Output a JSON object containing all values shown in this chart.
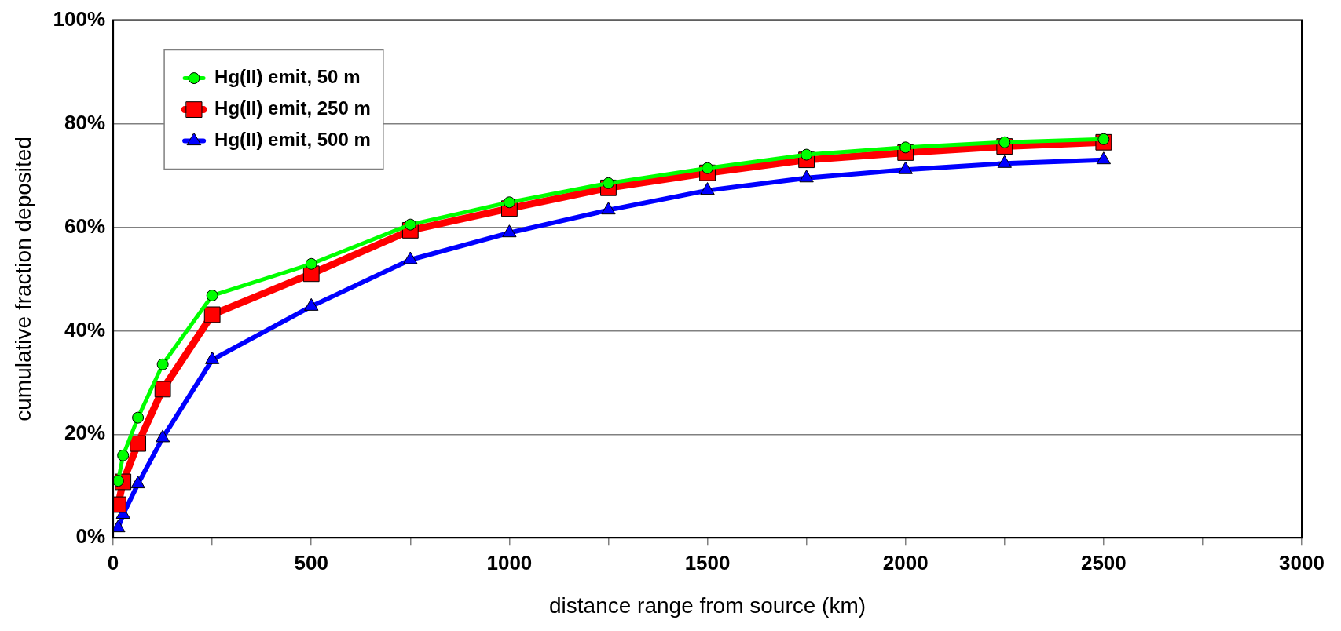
{
  "chart_data": {
    "type": "line",
    "xlabel": "distance range from source (km)",
    "ylabel": "cumulative fraction deposited",
    "x": [
      12.5,
      25,
      62.5,
      125,
      250,
      500,
      750,
      1000,
      1250,
      1500,
      1750,
      2000,
      2250,
      2500
    ],
    "series": [
      {
        "name": "Hg(II) emit, 50 m",
        "color": "#00ff00",
        "marker": "circle",
        "values": [
          11,
          15.9,
          23.2,
          33.5,
          46.8,
          52.9,
          60.5,
          64.8,
          68.5,
          71.4,
          74,
          75.4,
          76.4,
          77
        ]
      },
      {
        "name": "Hg(II) emit, 250 m",
        "color": "#ff0000",
        "marker": "square",
        "values": [
          6.4,
          10.8,
          18.2,
          28.7,
          43.1,
          51,
          59.4,
          63.6,
          67.6,
          70.5,
          73,
          74.4,
          75.6,
          76.4
        ]
      },
      {
        "name": "Hg(II) emit, 500 m",
        "color": "#0000ff",
        "marker": "triangle",
        "values": [
          1.9,
          4.5,
          10.4,
          19.3,
          34.4,
          44.7,
          53.7,
          58.9,
          63.3,
          67.1,
          69.5,
          71.1,
          72.3,
          73
        ]
      }
    ],
    "xlim": [
      0,
      3000
    ],
    "xticks": [
      0,
      {
        "value": 250,
        "label": null
      },
      500,
      {
        "value": 750,
        "label": null
      },
      1000,
      {
        "value": 1250,
        "label": null
      },
      1500,
      {
        "value": 1750,
        "label": null
      },
      2000,
      {
        "value": 2250,
        "label": null
      },
      2500,
      {
        "value": 2750,
        "label": null
      },
      3000
    ],
    "ylim": [
      0,
      100
    ],
    "yticks": [
      {
        "value": 0,
        "label": "0%"
      },
      {
        "value": 20,
        "label": "20%"
      },
      {
        "value": 40,
        "label": "40%"
      },
      {
        "value": 60,
        "label": "60%"
      },
      {
        "value": 80,
        "label": "80%"
      },
      {
        "value": 100,
        "label": "100%"
      }
    ],
    "grid": "y",
    "legend": "top left"
  }
}
